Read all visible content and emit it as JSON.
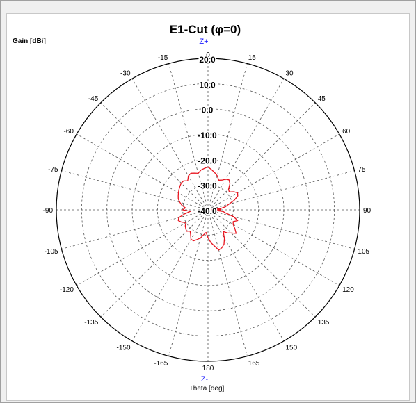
{
  "chart_data": {
    "type": "line",
    "subtype": "polar",
    "title": "E1-Cut (φ=0)",
    "radial_label": "Gain [dBi]",
    "angular_label": "Theta [deg]",
    "top_pole_label": "Z+",
    "bottom_pole_label": "Z-",
    "r_range": [
      -40,
      20
    ],
    "r_ticks": [
      20,
      10,
      0,
      -10,
      -20,
      -30,
      -40
    ],
    "r_tick_labels": [
      "20.0",
      "10.0",
      "0.0",
      "-10.0",
      "-20.0",
      "-30.0",
      "-40.0"
    ],
    "theta_ticks": [
      0,
      15,
      30,
      45,
      60,
      75,
      90,
      105,
      120,
      135,
      150,
      165,
      180,
      -165,
      -150,
      -135,
      -120,
      -105,
      -90,
      -75,
      -60,
      -45,
      -30,
      -15
    ],
    "theta_tick_labels": [
      "0",
      "15",
      "30",
      "45",
      "60",
      "75",
      "90",
      "105",
      "120",
      "135",
      "150",
      "165",
      "180",
      "-165",
      "-150",
      "-135",
      "-120",
      "-105",
      "-90",
      "-75",
      "-60",
      "-45",
      "-30",
      "-15"
    ],
    "grid": true,
    "series": [
      {
        "color": "#e8141e",
        "theta": [
          0,
          5,
          10,
          15,
          20,
          25,
          30,
          35,
          40,
          45,
          50,
          55,
          60,
          65,
          70,
          75,
          80,
          84,
          86,
          88,
          90,
          92,
          94,
          96,
          100,
          105,
          110,
          115,
          120,
          125,
          130,
          135,
          140,
          145,
          150,
          155,
          160,
          165,
          170,
          175,
          180,
          -175,
          -170,
          -165,
          -160,
          -155,
          -150,
          -145,
          -140,
          -135,
          -130,
          -125,
          -120,
          -115,
          -110,
          -105,
          -100,
          -95,
          -90,
          -85,
          -80,
          -75,
          -70,
          -65,
          -60,
          -55,
          -50,
          -45,
          -40,
          -35,
          -30,
          -25,
          -20,
          -15,
          -10,
          -5
        ],
        "gain": [
          -23,
          -24,
          -25,
          -26,
          -27.5,
          -27,
          -26,
          -25.5,
          -26.5,
          -28.5,
          -29,
          -27.5,
          -26.5,
          -27,
          -29,
          -31.5,
          -33,
          -35,
          -37.5,
          -35,
          -38.5,
          -35,
          -37.5,
          -34,
          -33,
          -29.5,
          -27.5,
          -29,
          -28.5,
          -27,
          -25.5,
          -27,
          -28,
          -29.5,
          -27,
          -25,
          -24,
          -23.5,
          -25.5,
          -27,
          -29,
          -31,
          -30,
          -28.5,
          -27.5,
          -26.5,
          -26.5,
          -28,
          -29,
          -28,
          -28.5,
          -29,
          -30,
          -28.5,
          -27.5,
          -28,
          -30.5,
          -33,
          -30,
          -31,
          -29.5,
          -28.5,
          -27.5,
          -27,
          -26.5,
          -26,
          -25.5,
          -25,
          -25,
          -26,
          -24.5,
          -24,
          -24.5,
          -25,
          -24,
          -23.5
        ]
      }
    ]
  }
}
